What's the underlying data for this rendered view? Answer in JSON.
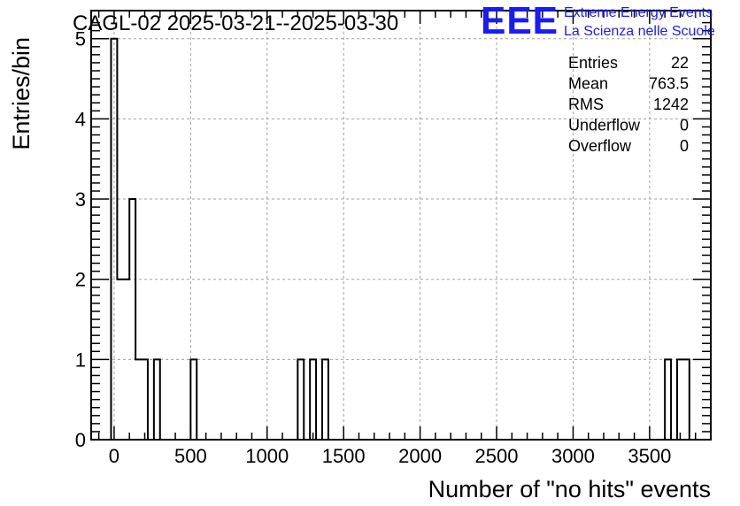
{
  "chart_data": {
    "type": "bar",
    "title": "CAGL-02 2025-03-21--2025-03-30",
    "xlabel": "Number of \"no hits\" events",
    "ylabel": "Entries/bin",
    "xlim": [
      -150,
      3900
    ],
    "ylim": [
      0,
      5.35
    ],
    "x_ticks": [
      0,
      500,
      1000,
      1500,
      2000,
      2500,
      3000,
      3500
    ],
    "y_ticks": [
      0,
      1,
      2,
      3,
      4,
      5
    ],
    "grid": true,
    "bin_width": 40,
    "bins": [
      {
        "x_low": -20,
        "x_high": 20,
        "value": 5
      },
      {
        "x_low": 20,
        "x_high": 100,
        "value": 2
      },
      {
        "x_low": 100,
        "x_high": 140,
        "value": 3
      },
      {
        "x_low": 140,
        "x_high": 220,
        "value": 1
      },
      {
        "x_low": 260,
        "x_high": 300,
        "value": 1
      },
      {
        "x_low": 500,
        "x_high": 540,
        "value": 1
      },
      {
        "x_low": 1200,
        "x_high": 1240,
        "value": 1
      },
      {
        "x_low": 1280,
        "x_high": 1320,
        "value": 1
      },
      {
        "x_low": 1360,
        "x_high": 1400,
        "value": 1
      },
      {
        "x_low": 3600,
        "x_high": 3640,
        "value": 1
      },
      {
        "x_low": 3680,
        "x_high": 3760,
        "value": 1
      }
    ]
  },
  "stats_box": {
    "rows": [
      {
        "label": "Entries",
        "value": "22"
      },
      {
        "label": "Mean",
        "value": "763.5"
      },
      {
        "label": "RMS",
        "value": "1242"
      },
      {
        "label": "Underflow",
        "value": "0"
      },
      {
        "label": "Overflow",
        "value": "0"
      }
    ]
  },
  "logo": {
    "mark": "EEE",
    "line1": "Extreme Energy Events",
    "line2": "La Scienza nelle Scuole",
    "color": "#1a1aff"
  },
  "colors": {
    "histogram": "#000000",
    "grid": "#a0a0a0"
  }
}
